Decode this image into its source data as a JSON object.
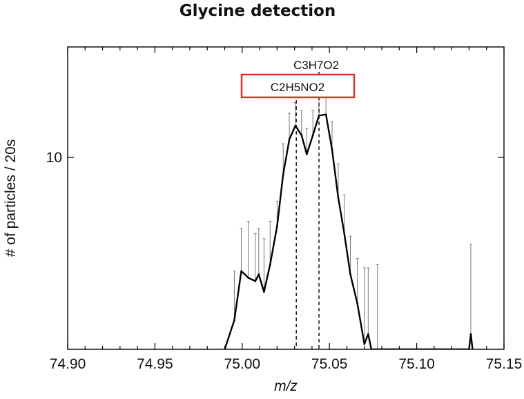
{
  "chart_data": {
    "type": "line",
    "title": "Glycine detection",
    "xlabel": "m/z",
    "ylabel": "# of particles / 20s",
    "xlim": [
      74.9,
      75.15
    ],
    "ylim": [
      3,
      20
    ],
    "y_scale": "log",
    "x_ticks": [
      "74.90",
      "74.95",
      "75.00",
      "75.05",
      "75.10",
      "75.15"
    ],
    "y_ticks": [
      {
        "value": 10,
        "label": "10"
      }
    ],
    "series": [
      {
        "x": [
          74.99,
          74.9955,
          74.9995,
          75.0035,
          75.0075,
          75.0095,
          75.0125,
          75.016,
          75.02,
          75.0235,
          75.027,
          75.0305,
          75.034,
          75.037,
          75.0405,
          75.044,
          75.048,
          75.0515,
          75.055,
          75.0585,
          75.062,
          75.066,
          75.07,
          75.0722,
          75.074,
          75.0775,
          75.08,
          75.13,
          75.131,
          75.132
        ],
        "y": [
          3.0,
          3.6,
          4.9,
          4.7,
          4.6,
          4.8,
          4.3,
          5.1,
          6.5,
          9.0,
          11.2,
          12.2,
          11.5,
          10.2,
          11.5,
          13.0,
          13.1,
          10.5,
          7.8,
          6.2,
          4.8,
          4.0,
          3.1,
          3.3,
          3.0,
          3.0,
          3.0,
          3.0,
          3.3,
          3.0
        ],
        "error_upper": [
          null,
          4.9,
          6.4,
          6.7,
          6.2,
          6.4,
          6.0,
          6.7,
          7.6,
          10.9,
          13.2,
          14.1,
          13.4,
          12.0,
          13.4,
          15.0,
          14.9,
          12.5,
          9.6,
          7.9,
          6.1,
          5.3,
          5.0,
          5.0,
          null,
          5.1,
          null,
          null,
          5.8,
          null
        ]
      }
    ],
    "annotations": [
      {
        "label": "C3H7O2",
        "x": 75.044,
        "boxed": false
      },
      {
        "label": "C2H5NO2",
        "x": 75.031,
        "boxed": true,
        "box_color": "#e03030"
      }
    ],
    "grid": false,
    "line_color": "#000000",
    "error_color": "#777777"
  }
}
